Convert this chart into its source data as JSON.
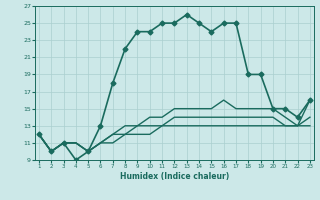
{
  "xlabel": "Humidex (Indice chaleur)",
  "bg_color": "#cce8e8",
  "grid_color": "#aacfcf",
  "line_color": "#1a6b5e",
  "xlim": [
    1,
    23
  ],
  "ylim": [
    9,
    27
  ],
  "xticks": [
    1,
    2,
    3,
    4,
    5,
    6,
    7,
    8,
    9,
    10,
    11,
    12,
    13,
    14,
    15,
    16,
    17,
    18,
    19,
    20,
    21,
    22,
    23
  ],
  "yticks": [
    9,
    11,
    13,
    15,
    17,
    19,
    21,
    23,
    25,
    27
  ],
  "lines": [
    {
      "y": [
        12,
        10,
        11,
        9,
        10,
        13,
        18,
        22,
        24,
        24,
        25,
        25,
        26,
        25,
        24,
        25,
        25,
        19,
        19,
        15,
        15,
        14,
        16
      ],
      "marker": "D",
      "markersize": 2.5,
      "linestyle": "-",
      "linewidth": 1.2
    },
    {
      "y": [
        12,
        10,
        11,
        11,
        10,
        11,
        12,
        13,
        13,
        14,
        14,
        15,
        15,
        15,
        15,
        16,
        15,
        15,
        15,
        15,
        14,
        13,
        16
      ],
      "marker": null,
      "markersize": 0,
      "linestyle": "-",
      "linewidth": 1.0
    },
    {
      "y": [
        12,
        10,
        11,
        11,
        10,
        11,
        12,
        12,
        13,
        13,
        13,
        14,
        14,
        14,
        14,
        14,
        14,
        14,
        14,
        14,
        13,
        13,
        14
      ],
      "marker": null,
      "markersize": 0,
      "linestyle": "-",
      "linewidth": 1.0
    },
    {
      "y": [
        12,
        10,
        11,
        11,
        10,
        11,
        11,
        12,
        12,
        12,
        13,
        13,
        13,
        13,
        13,
        13,
        13,
        13,
        13,
        13,
        13,
        13,
        13
      ],
      "marker": null,
      "markersize": 0,
      "linestyle": "-",
      "linewidth": 1.0
    }
  ]
}
